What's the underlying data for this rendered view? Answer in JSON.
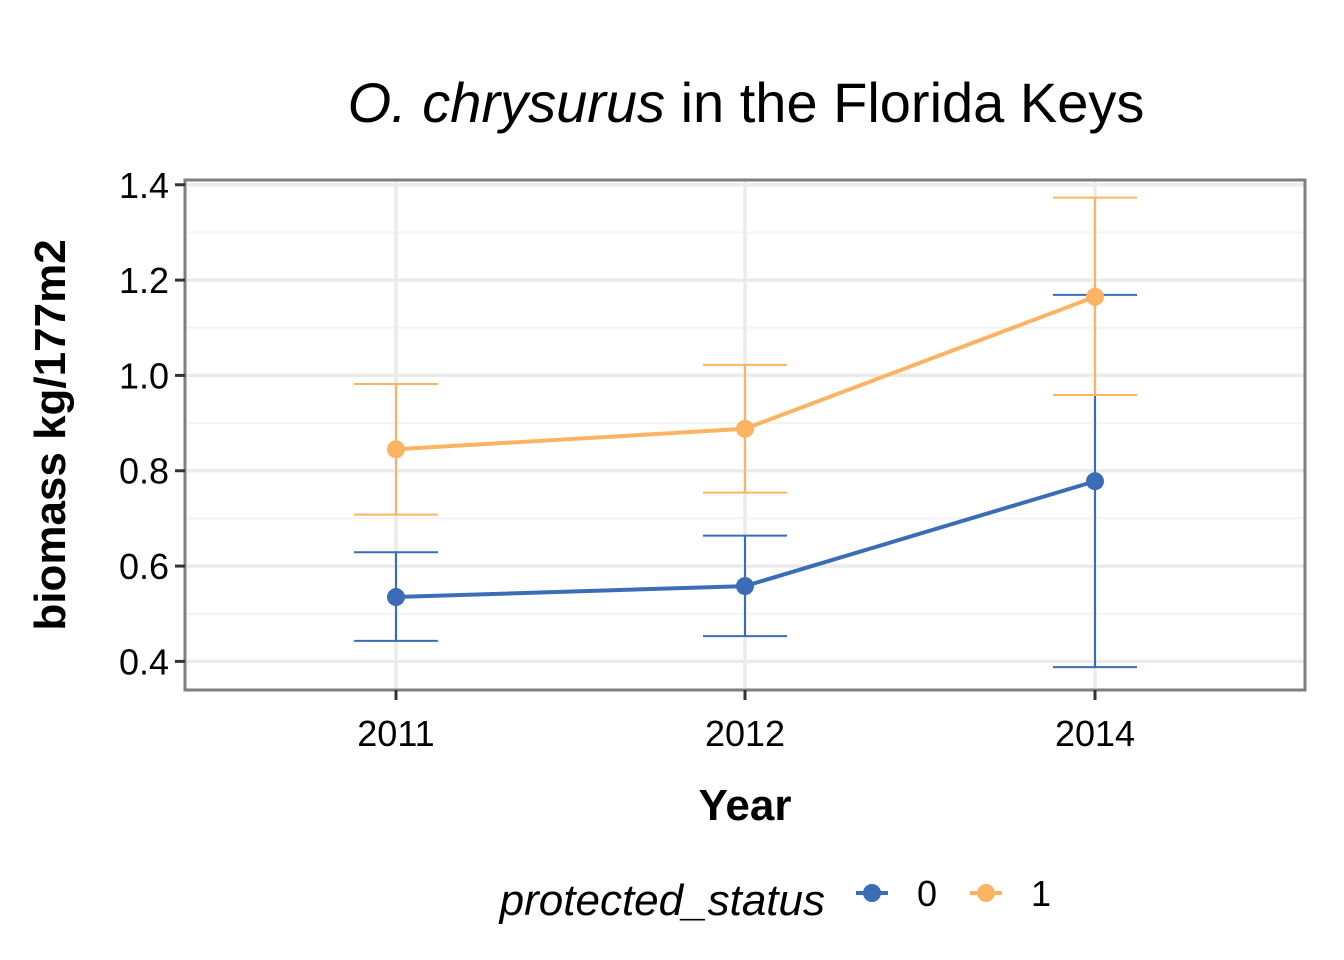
{
  "chart_data": {
    "type": "line",
    "title": {
      "italic": "O. chrysurus",
      "rest": " in the Florida Keys"
    },
    "xlabel": "Year",
    "ylabel": "biomass kg/177m2",
    "categories": [
      "2011",
      "2012",
      "2014"
    ],
    "ylim": [
      0.34,
      1.41
    ],
    "yticks": [
      0.4,
      0.6,
      0.8,
      1.0,
      1.2,
      1.4
    ],
    "ytick_labels": [
      "0.4",
      "0.6",
      "0.8",
      "1.0",
      "1.2",
      "1.4"
    ],
    "grid": true,
    "legend": {
      "title": "protected_status",
      "position": "bottom"
    },
    "series": [
      {
        "name": "0",
        "color": "#3a6db5",
        "values": [
          0.535,
          0.558,
          0.778
        ],
        "lower": [
          0.443,
          0.453,
          0.388
        ],
        "upper": [
          0.629,
          0.664,
          1.169
        ]
      },
      {
        "name": "1",
        "color": "#fdb462",
        "values": [
          0.845,
          0.888,
          1.165
        ],
        "lower": [
          0.708,
          0.754,
          0.959
        ],
        "upper": [
          0.982,
          1.022,
          1.373
        ]
      }
    ]
  }
}
